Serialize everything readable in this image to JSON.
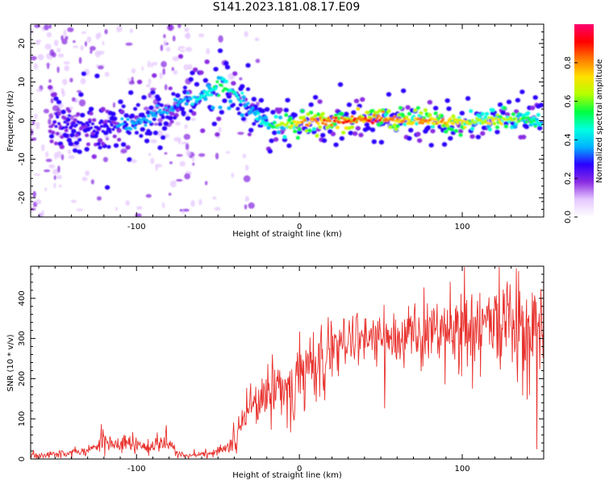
{
  "figure": {
    "title": "S141.2023.181.08.17.E09"
  },
  "chart_data": [
    {
      "type": "heatmap",
      "xlabel": "Height of straight line (km)",
      "ylabel": "Frequency (Hz)",
      "xlim": [
        -165,
        150
      ],
      "ylim": [
        -25,
        25
      ],
      "x_ticks": [
        -100,
        0,
        100
      ],
      "y_ticks": [
        -20,
        -10,
        0,
        10,
        20
      ],
      "colorbar": {
        "label": "Normalized spectral amplitude",
        "range": [
          0,
          1
        ],
        "ticks": [
          "0.0",
          "0.2",
          "0.4",
          "0.6",
          "0.8"
        ],
        "colormap": [
          "#ffffff",
          "#e5c8ff",
          "#8a2be2",
          "#2c00ff",
          "#00b4ff",
          "#00ffe0",
          "#00ff40",
          "#b4ff00",
          "#ffe000",
          "#ff7a00",
          "#ff0000",
          "#ff0070"
        ]
      },
      "ridge": {
        "x": [
          -150,
          -135,
          -120,
          -110,
          -100,
          -90,
          -80,
          -70,
          -60,
          -50,
          -45,
          -40,
          -35,
          -30,
          -25,
          -20,
          -15,
          -10,
          -5,
          0,
          10,
          20,
          30,
          40,
          50,
          60,
          70,
          80,
          90,
          100,
          110,
          120,
          130,
          140,
          148
        ],
        "freq": [
          -1,
          -1,
          -2,
          -1,
          -1,
          1,
          3,
          5,
          6,
          8,
          9,
          7,
          5,
          3,
          1,
          -1,
          -1.5,
          -1,
          -1,
          -0.5,
          -0.5,
          0,
          0,
          0.5,
          0.5,
          0.5,
          0,
          0,
          -0.5,
          -0.5,
          0,
          0,
          0.5,
          0,
          -1
        ],
        "amplitude": [
          0.25,
          0.3,
          0.3,
          0.35,
          0.4,
          0.4,
          0.35,
          0.4,
          0.5,
          0.55,
          0.55,
          0.5,
          0.45,
          0.4,
          0.45,
          0.5,
          0.6,
          0.7,
          0.75,
          0.8,
          0.85,
          0.9,
          0.95,
          0.95,
          0.9,
          0.85,
          0.8,
          0.85,
          0.8,
          0.75,
          0.7,
          0.75,
          0.7,
          0.6,
          0.5
        ]
      }
    },
    {
      "type": "line",
      "xlabel": "Height of straight line (km)",
      "ylabel": "SNR (10 * v/v)",
      "xlim": [
        -165,
        150
      ],
      "ylim": [
        0,
        480
      ],
      "x_ticks": [
        -100,
        0,
        100
      ],
      "y_ticks": [
        0,
        100,
        200,
        300,
        400
      ],
      "series": [
        {
          "color": "#e8312d",
          "x": [
            -165,
            -150,
            -140,
            -130,
            -125,
            -120,
            -115,
            -110,
            -100,
            -90,
            -85,
            -80,
            -75,
            -70,
            -65,
            -60,
            -55,
            -50,
            -45,
            -40,
            -35,
            -30,
            -25,
            -20,
            -15,
            -10,
            -5,
            0,
            5,
            10,
            15,
            20,
            25,
            30,
            40,
            50,
            60,
            70,
            80,
            90,
            100,
            110,
            120,
            130,
            140,
            150
          ],
          "y": [
            10,
            12,
            15,
            20,
            30,
            45,
            40,
            40,
            35,
            30,
            45,
            40,
            15,
            8,
            10,
            12,
            15,
            20,
            30,
            50,
            90,
            120,
            140,
            160,
            170,
            180,
            190,
            200,
            215,
            240,
            260,
            275,
            285,
            295,
            300,
            305,
            300,
            305,
            310,
            315,
            310,
            320,
            330,
            320,
            310,
            300
          ],
          "spread": [
            5,
            5,
            6,
            8,
            12,
            18,
            15,
            15,
            12,
            12,
            18,
            15,
            6,
            4,
            4,
            5,
            6,
            8,
            12,
            20,
            30,
            40,
            45,
            45,
            45,
            45,
            45,
            50,
            50,
            50,
            45,
            40,
            40,
            40,
            40,
            40,
            45,
            45,
            50,
            50,
            55,
            60,
            70,
            75,
            80,
            80
          ]
        }
      ]
    }
  ]
}
